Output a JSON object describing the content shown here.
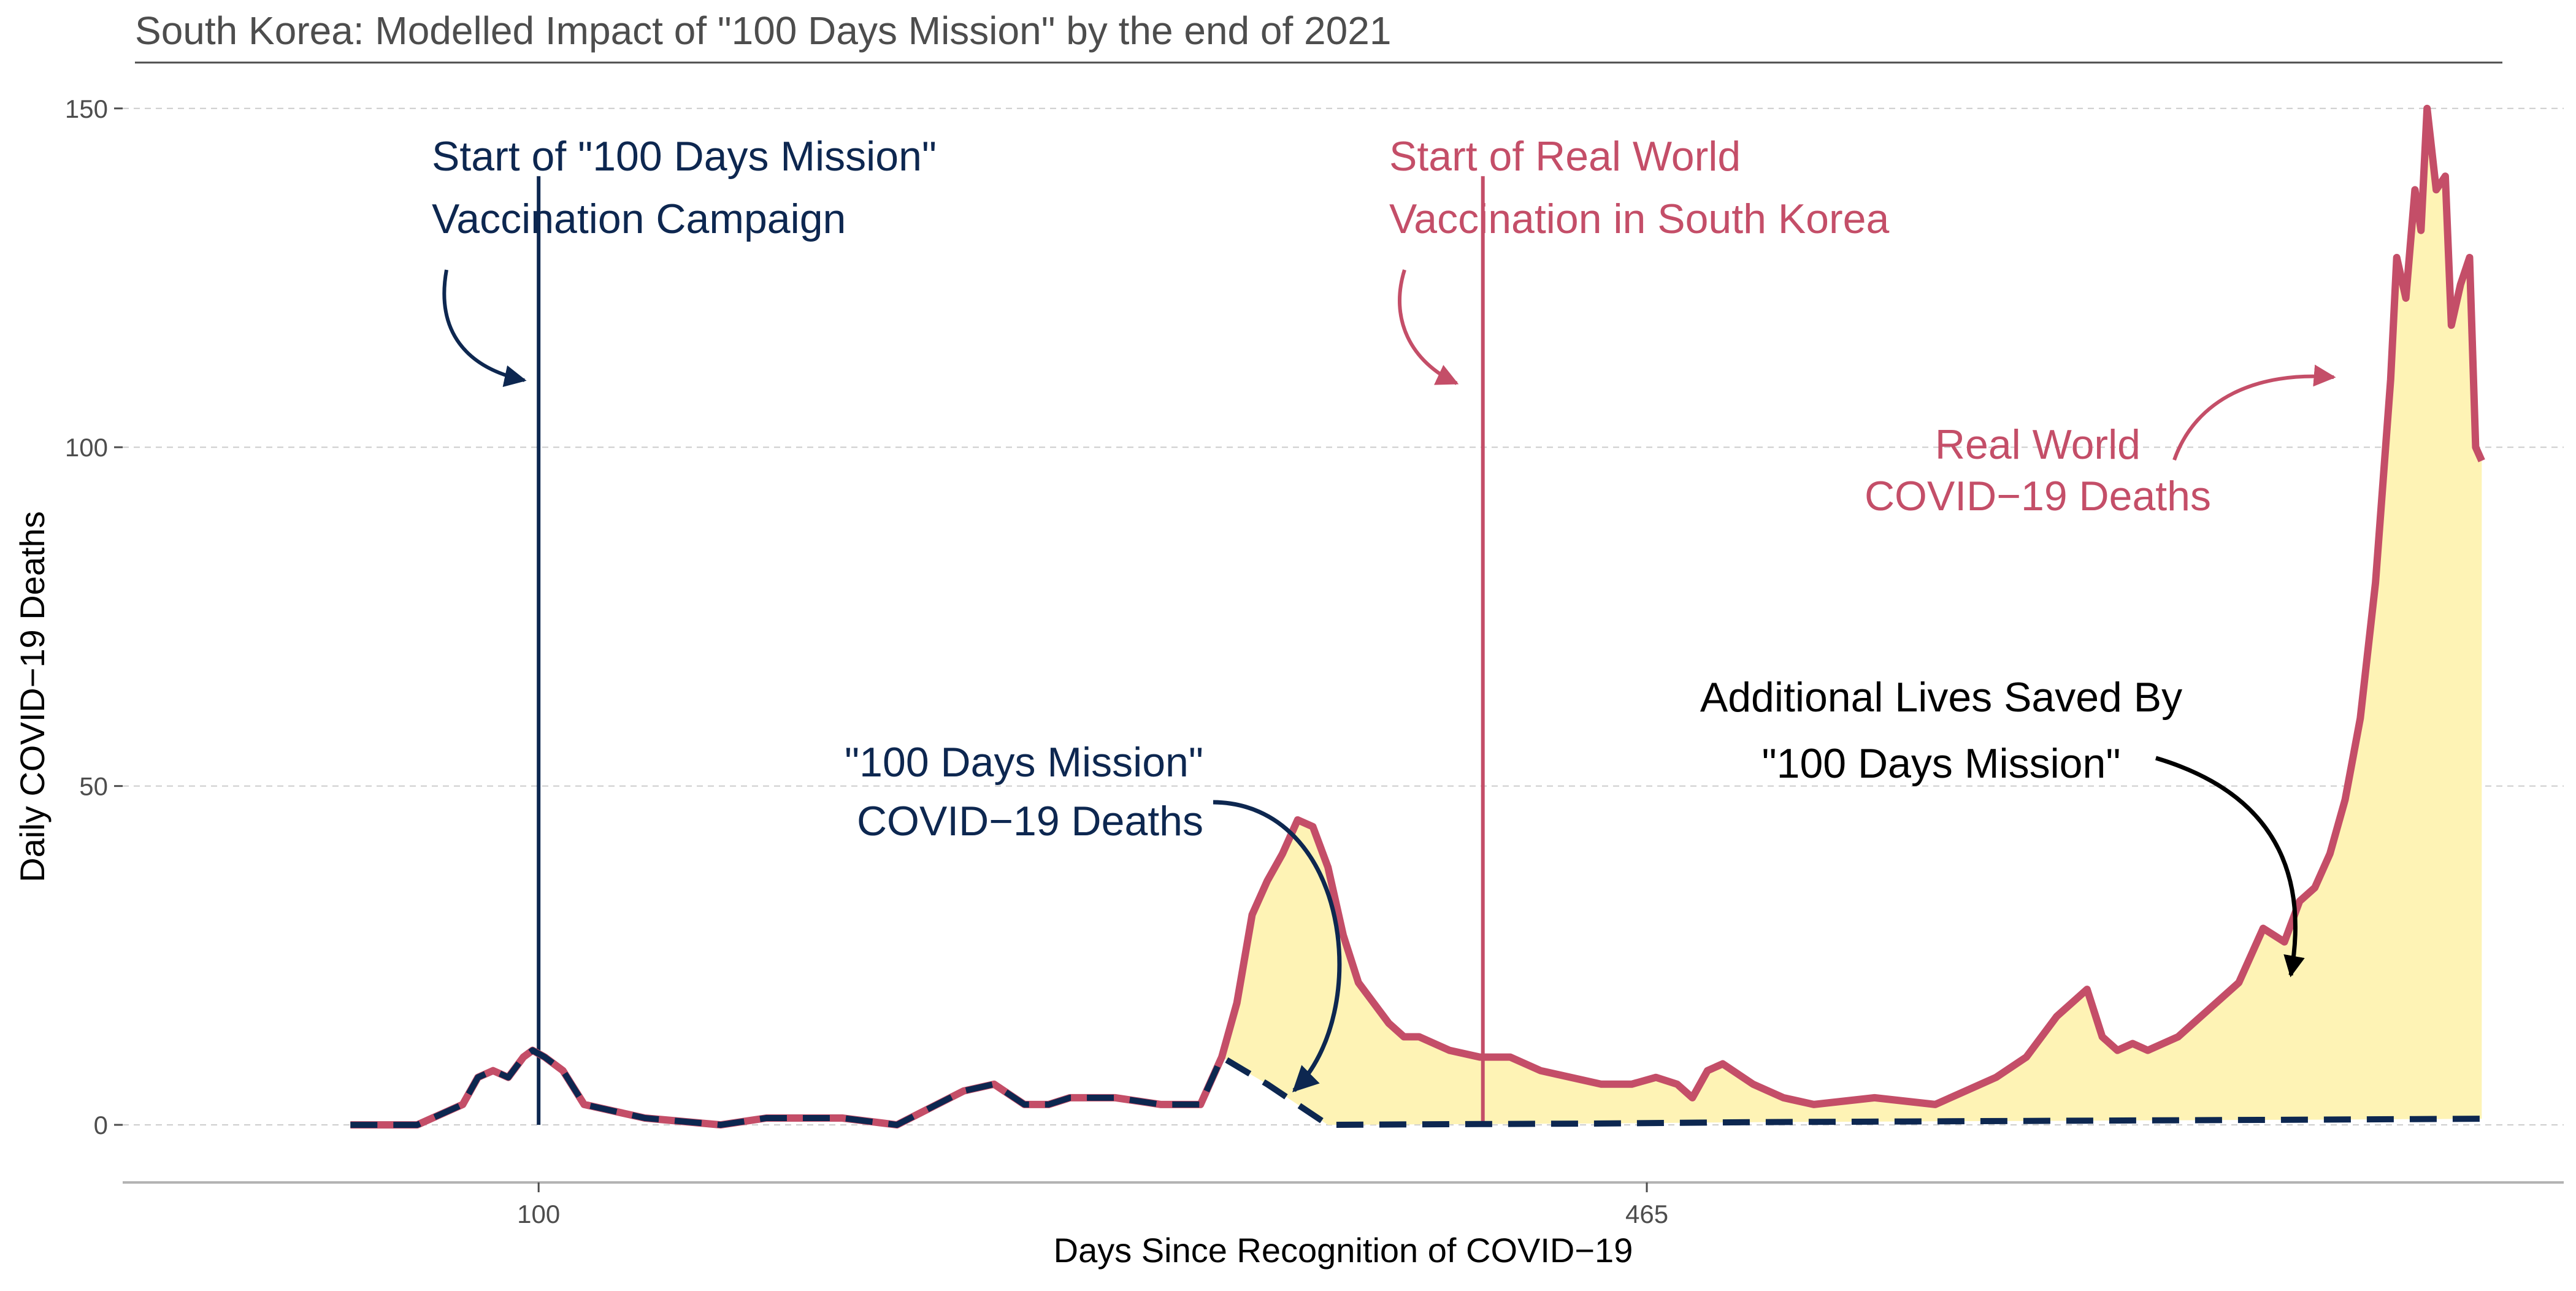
{
  "chart_data": {
    "type": "line",
    "title": "South Korea: Modelled Impact of \"100 Days Mission\" by the end of 2021",
    "xlabel": "Days Since Recognition of COVID−19",
    "ylabel": "Daily COVID−19 Deaths",
    "xlim": [
      -37,
      767
    ],
    "ylim": [
      -8.5,
      166
    ],
    "x_ticks": [
      {
        "value": 100,
        "label": "100"
      },
      {
        "value": 465,
        "label": "465"
      }
    ],
    "y_ticks": [
      {
        "value": 0,
        "label": "0"
      },
      {
        "value": 50,
        "label": "50"
      },
      {
        "value": 100,
        "label": "100"
      },
      {
        "value": 150,
        "label": "150"
      }
    ],
    "grid": "horizontal-dashed",
    "colors": {
      "real_world": "#c44e68",
      "mission": "#0d2750",
      "fill": "#fef3b5",
      "axis": "#b3b3b3",
      "grid": "#cccccc",
      "annotation_black": "#000000"
    },
    "series": [
      {
        "key": "real_world",
        "x": [
          38,
          60,
          75,
          80,
          85,
          90,
          95,
          98,
          102,
          108,
          115,
          135,
          160,
          175,
          200,
          218,
          240,
          250,
          260,
          268,
          275,
          290,
          305,
          318,
          325,
          330,
          335,
          340,
          345,
          350,
          355,
          360,
          365,
          370,
          375,
          380,
          385,
          390,
          400,
          410,
          420,
          430,
          450,
          460,
          468,
          475,
          480,
          485,
          490,
          500,
          510,
          520,
          540,
          560,
          580,
          590,
          600,
          610,
          615,
          620,
          625,
          630,
          640,
          650,
          660,
          668,
          675,
          680,
          685,
          690,
          695,
          700,
          705,
          710,
          712,
          715,
          718,
          720,
          722,
          725,
          728,
          730,
          733,
          736,
          738,
          740
        ],
        "y": [
          0,
          0,
          3,
          7,
          8,
          7,
          10,
          11,
          10,
          8,
          3,
          1,
          0,
          1,
          1,
          0,
          5,
          6,
          3,
          3,
          4,
          4,
          3,
          3,
          10,
          18,
          31,
          36,
          40,
          45,
          44,
          38,
          28,
          21,
          18,
          15,
          13,
          13,
          11,
          10,
          10,
          8,
          6,
          6,
          7,
          6,
          4,
          8,
          9,
          6,
          4,
          3,
          4,
          3,
          7,
          10,
          16,
          20,
          13,
          11,
          12,
          11,
          13,
          17,
          21,
          29,
          27,
          33,
          35,
          40,
          48,
          60,
          80,
          110,
          128,
          122,
          138,
          132,
          150,
          138,
          140,
          118,
          124,
          128,
          100,
          98
        ]
      },
      {
        "key": "mission",
        "x": [
          38,
          60,
          75,
          80,
          85,
          90,
          95,
          98,
          102,
          108,
          115,
          135,
          160,
          175,
          200,
          218,
          240,
          250,
          260,
          268,
          275,
          290,
          305,
          318,
          325,
          340,
          360,
          400,
          450,
          500,
          550,
          600,
          650,
          700,
          740
        ],
        "y": [
          0,
          0,
          3,
          7,
          8,
          7,
          10,
          11,
          10,
          8,
          3,
          1,
          0,
          1,
          1,
          0,
          5,
          6,
          3,
          3,
          4,
          4,
          3,
          3,
          10,
          6,
          0,
          0.1,
          0.2,
          0.4,
          0.5,
          0.6,
          0.7,
          0.8,
          0.9
        ]
      }
    ],
    "vlines": [
      {
        "key": "mission_start",
        "x": 100,
        "y_top": 140
      },
      {
        "key": "real_start",
        "x": 411,
        "y_top": 140
      }
    ],
    "annotations": {
      "mission_start": [
        "Start of \"100 Days Mission\"",
        "Vaccination Campaign"
      ],
      "real_start": [
        "Start of Real World",
        "Vaccination in South Korea"
      ],
      "real_deaths": [
        "Real World",
        "COVID−19 Deaths"
      ],
      "mission_deaths": [
        "\"100 Days Mission\"",
        "COVID−19 Deaths"
      ],
      "lives_saved": [
        "Additional Lives Saved By",
        "\"100 Days Mission\""
      ]
    }
  }
}
